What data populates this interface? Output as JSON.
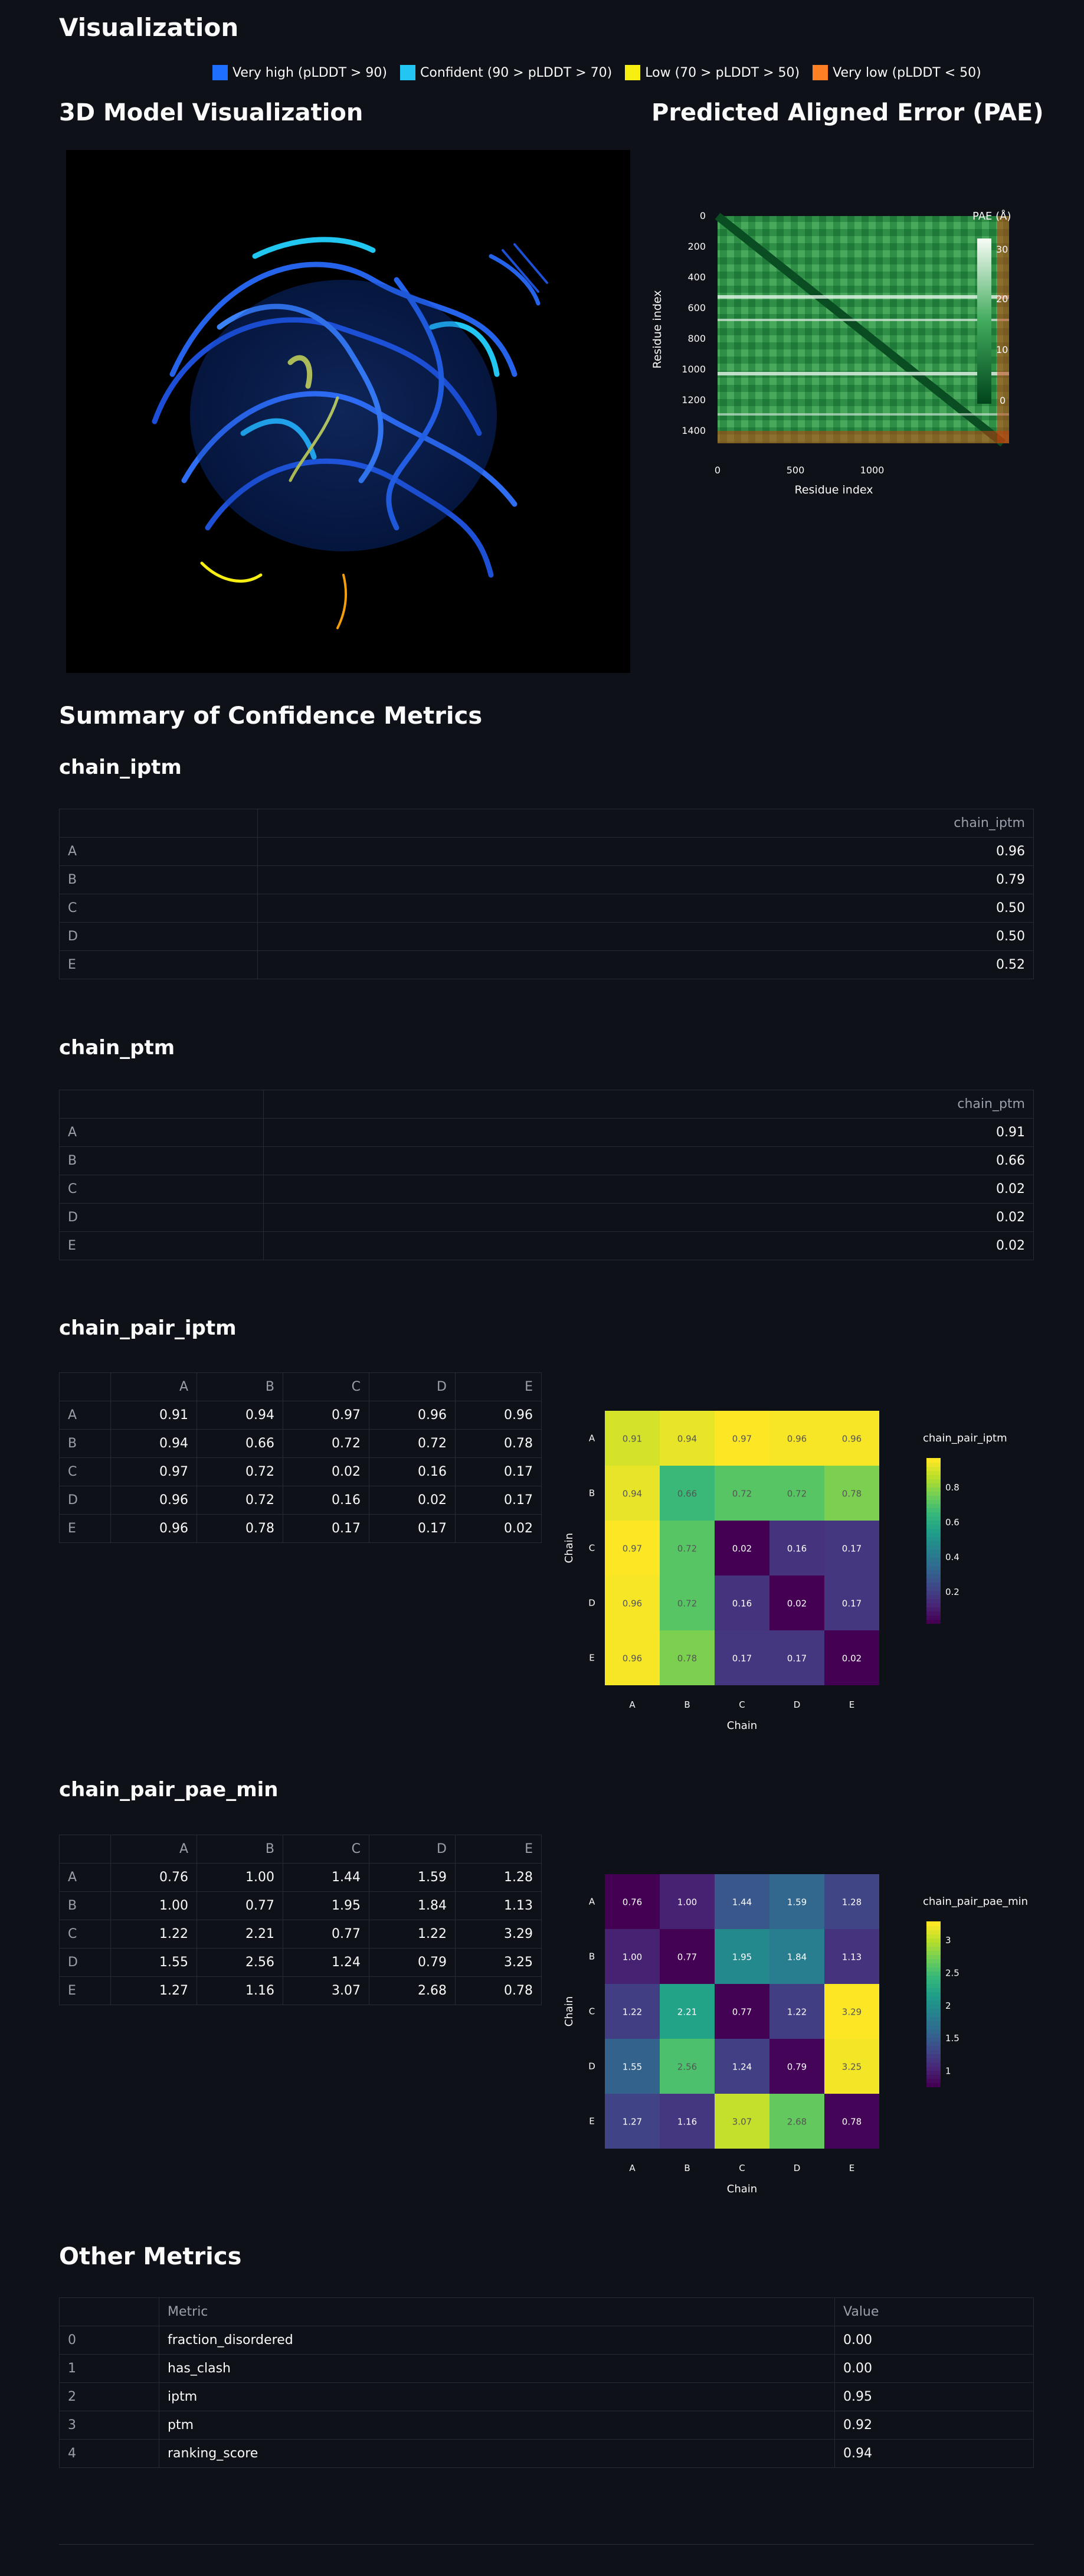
{
  "header": {
    "title": "Visualization"
  },
  "legend": {
    "items": [
      {
        "label": "Very high (pLDDT > 90)",
        "color": "#1f6fff"
      },
      {
        "label": "Confident (90 > pLDDT > 70)",
        "color": "#21c7f0"
      },
      {
        "label": "Low (70 > pLDDT > 50)",
        "color": "#f7ef12"
      },
      {
        "label": "Very low (pLDDT < 50)",
        "color": "#ff8024"
      }
    ]
  },
  "model": {
    "title": "3D Model Visualization"
  },
  "pae": {
    "title": "Predicted Aligned Error (PAE)",
    "xlabel": "Residue index",
    "ylabel": "Residue index",
    "colorbar_title": "PAE (Å)",
    "x_ticks": [
      "0",
      "500",
      "1000"
    ],
    "y_ticks": [
      "0",
      "200",
      "400",
      "600",
      "800",
      "1000",
      "1200",
      "1400"
    ],
    "cbar_ticks": [
      "30",
      "20",
      "10",
      "0"
    ]
  },
  "summary": {
    "title": "Summary of Confidence Metrics"
  },
  "chain_iptm": {
    "title": "chain_iptm",
    "column": "chain_iptm",
    "rows": [
      {
        "idx": "A",
        "value": "0.96"
      },
      {
        "idx": "B",
        "value": "0.79"
      },
      {
        "idx": "C",
        "value": "0.50"
      },
      {
        "idx": "D",
        "value": "0.50"
      },
      {
        "idx": "E",
        "value": "0.52"
      }
    ]
  },
  "chain_ptm": {
    "title": "chain_ptm",
    "column": "chain_ptm",
    "rows": [
      {
        "idx": "A",
        "value": "0.91"
      },
      {
        "idx": "B",
        "value": "0.66"
      },
      {
        "idx": "C",
        "value": "0.02"
      },
      {
        "idx": "D",
        "value": "0.02"
      },
      {
        "idx": "E",
        "value": "0.02"
      }
    ]
  },
  "chain_pair_iptm": {
    "title": "chain_pair_iptm",
    "columns": [
      "A",
      "B",
      "C",
      "D",
      "E"
    ],
    "rows": [
      {
        "idx": "A",
        "values": [
          "0.91",
          "0.94",
          "0.97",
          "0.96",
          "0.96"
        ]
      },
      {
        "idx": "B",
        "values": [
          "0.94",
          "0.66",
          "0.72",
          "0.72",
          "0.78"
        ]
      },
      {
        "idx": "C",
        "values": [
          "0.97",
          "0.72",
          "0.02",
          "0.16",
          "0.17"
        ]
      },
      {
        "idx": "D",
        "values": [
          "0.96",
          "0.72",
          "0.16",
          "0.02",
          "0.17"
        ]
      },
      {
        "idx": "E",
        "values": [
          "0.96",
          "0.78",
          "0.17",
          "0.17",
          "0.02"
        ]
      }
    ],
    "heatmap": {
      "xlabel": "Chain",
      "ylabel": "Chain",
      "colorbar_title": "chain_pair_iptm",
      "cbar_ticks": [
        "0.8",
        "0.6",
        "0.4",
        "0.2"
      ]
    }
  },
  "chain_pair_pae_min": {
    "title": "chain_pair_pae_min",
    "columns": [
      "A",
      "B",
      "C",
      "D",
      "E"
    ],
    "rows": [
      {
        "idx": "A",
        "values": [
          "0.76",
          "1.00",
          "1.44",
          "1.59",
          "1.28"
        ]
      },
      {
        "idx": "B",
        "values": [
          "1.00",
          "0.77",
          "1.95",
          "1.84",
          "1.13"
        ]
      },
      {
        "idx": "C",
        "values": [
          "1.22",
          "2.21",
          "0.77",
          "1.22",
          "3.29"
        ]
      },
      {
        "idx": "D",
        "values": [
          "1.55",
          "2.56",
          "1.24",
          "0.79",
          "3.25"
        ]
      },
      {
        "idx": "E",
        "values": [
          "1.27",
          "1.16",
          "3.07",
          "2.68",
          "0.78"
        ]
      }
    ],
    "heatmap": {
      "xlabel": "Chain",
      "ylabel": "Chain",
      "colorbar_title": "chain_pair_pae_min",
      "cbar_ticks": [
        "3",
        "2.5",
        "2",
        "1.5",
        "1"
      ]
    }
  },
  "other_metrics": {
    "title": "Other Metrics",
    "columns": [
      "Metric",
      "Value"
    ],
    "rows": [
      {
        "idx": "0",
        "metric": "fraction_disordered",
        "value": "0.00"
      },
      {
        "idx": "1",
        "metric": "has_clash",
        "value": "0.00"
      },
      {
        "idx": "2",
        "metric": "iptm",
        "value": "0.95"
      },
      {
        "idx": "3",
        "metric": "ptm",
        "value": "0.92"
      },
      {
        "idx": "4",
        "metric": "ranking_score",
        "value": "0.94"
      }
    ]
  },
  "chart_data": [
    {
      "type": "heatmap",
      "title": "",
      "xlabel": "Chain",
      "ylabel": "Chain",
      "categories": [
        "A",
        "B",
        "C",
        "D",
        "E"
      ],
      "colorbar": "chain_pair_iptm",
      "zlim": [
        0.02,
        0.97
      ],
      "values": [
        [
          0.91,
          0.94,
          0.97,
          0.96,
          0.96
        ],
        [
          0.94,
          0.66,
          0.72,
          0.72,
          0.78
        ],
        [
          0.97,
          0.72,
          0.02,
          0.16,
          0.17
        ],
        [
          0.96,
          0.72,
          0.16,
          0.02,
          0.17
        ],
        [
          0.96,
          0.78,
          0.17,
          0.17,
          0.02
        ]
      ]
    },
    {
      "type": "heatmap",
      "title": "",
      "xlabel": "Chain",
      "ylabel": "Chain",
      "categories": [
        "A",
        "B",
        "C",
        "D",
        "E"
      ],
      "colorbar": "chain_pair_pae_min",
      "zlim": [
        0.76,
        3.29
      ],
      "values": [
        [
          0.76,
          1.0,
          1.44,
          1.59,
          1.28
        ],
        [
          1.0,
          0.77,
          1.95,
          1.84,
          1.13
        ],
        [
          1.22,
          2.21,
          0.77,
          1.22,
          3.29
        ],
        [
          1.55,
          2.56,
          1.24,
          0.79,
          3.25
        ],
        [
          1.27,
          1.16,
          3.07,
          2.68,
          0.78
        ]
      ]
    }
  ]
}
